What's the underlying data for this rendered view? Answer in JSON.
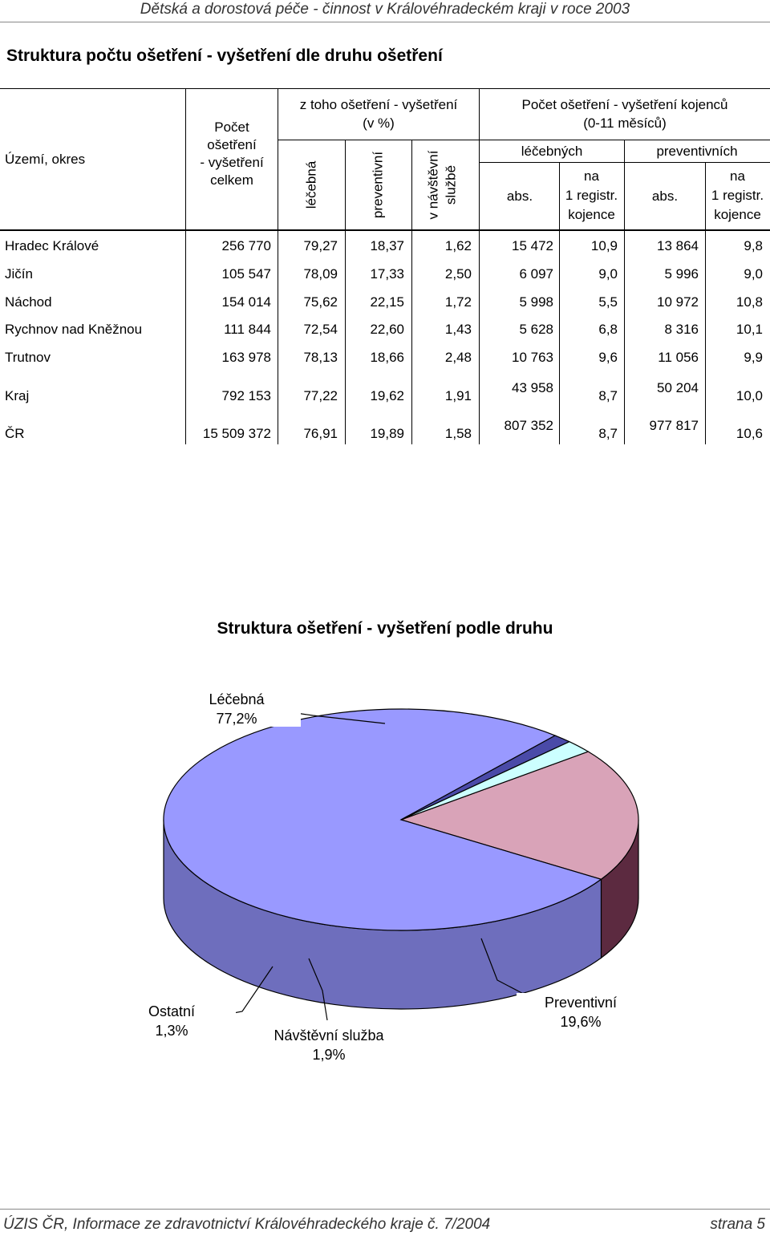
{
  "page": {
    "header": "Dětská a dorostová péče - činnost v Královéhradeckém kraji v roce 2003",
    "title": "Struktura počtu ošetření - vyšetření dle druhu ošetření",
    "footer_left": "ÚZIS ČR, Informace ze zdravotnictví Královéhradeckého kraje č. 7/2004",
    "footer_right": "strana 5"
  },
  "table": {
    "head": {
      "uzemi": "Území, okres",
      "pocet": [
        "Počet",
        "ošetření",
        "- vyšetření",
        "celkem"
      ],
      "ztoho": [
        "z toho ošetření - vyšetření",
        "(v %)"
      ],
      "lecebna": "léčebná",
      "preventivni": "preventivní",
      "navstevni": [
        "v návštěvní",
        "službě"
      ],
      "kojenci": [
        "Počet ošetření - vyšetření kojenců",
        "(0-11 měsíců)"
      ],
      "lecebnych": "léčebných",
      "preventivnich": "preventivních",
      "abs1": "abs.",
      "na1": [
        "na",
        "1 registr.",
        "kojence"
      ],
      "abs2": "abs.",
      "na2": [
        "na",
        "1 registr.",
        "kojence"
      ]
    },
    "rows": [
      {
        "name": "Hradec Králové",
        "total": "256 770",
        "lec": "79,27",
        "prev": "18,37",
        "nav": "1,62",
        "labs": "15 472",
        "lna": "10,9",
        "pabs": "13 864",
        "pna": "9,8"
      },
      {
        "name": "Jičín",
        "total": "105 547",
        "lec": "78,09",
        "prev": "17,33",
        "nav": "2,50",
        "labs": "6 097",
        "lna": "9,0",
        "pabs": "5 996",
        "pna": "9,0"
      },
      {
        "name": "Náchod",
        "total": "154 014",
        "lec": "75,62",
        "prev": "22,15",
        "nav": "1,72",
        "labs": "5 998",
        "lna": "5,5",
        "pabs": "10 972",
        "pna": "10,8"
      },
      {
        "name": "Rychnov nad Kněžnou",
        "total": "111 844",
        "lec": "72,54",
        "prev": "22,60",
        "nav": "1,43",
        "labs": "5 628",
        "lna": "6,8",
        "pabs": "8 316",
        "pna": "10,1"
      },
      {
        "name": "Trutnov",
        "total": "163 978",
        "lec": "78,13",
        "prev": "18,66",
        "nav": "2,48",
        "labs": "10 763",
        "lna": "9,6",
        "pabs": "11 056",
        "pna": "9,9"
      },
      {
        "name": "Kraj",
        "total": "792 153",
        "lec": "77,22",
        "prev": "19,62",
        "nav": "1,91",
        "labs": "43 958",
        "lna": "8,7",
        "pabs": "50 204",
        "pna": "10,0"
      },
      {
        "name": "ČR",
        "total": "15 509 372",
        "lec": "76,91",
        "prev": "19,89",
        "nav": "1,58",
        "labs": "807 352",
        "lna": "8,7",
        "pabs": "977 817",
        "pna": "10,6"
      }
    ]
  },
  "chart_data": {
    "type": "pie",
    "title": "Struktura ošetření - vyšetření podle druhu",
    "slices": [
      {
        "label": "Léčebná",
        "value_text": "77,2%",
        "value": 77.2,
        "color": "#9999ff",
        "side_color": "#6e6ebd"
      },
      {
        "label": "Preventivní",
        "value_text": "19,6%",
        "value": 19.6,
        "color": "#d9a3b8",
        "side_color": "#5c2a40"
      },
      {
        "label": "Návštěvní služba",
        "value_text": "1,9%",
        "value": 1.9,
        "color": "#ccffff",
        "side_color": "#5f8585"
      },
      {
        "label": "Ostatní",
        "value_text": "1,3%",
        "value": 1.3,
        "color": "#4a4aa8",
        "side_color": "#1a1a5a"
      }
    ]
  }
}
